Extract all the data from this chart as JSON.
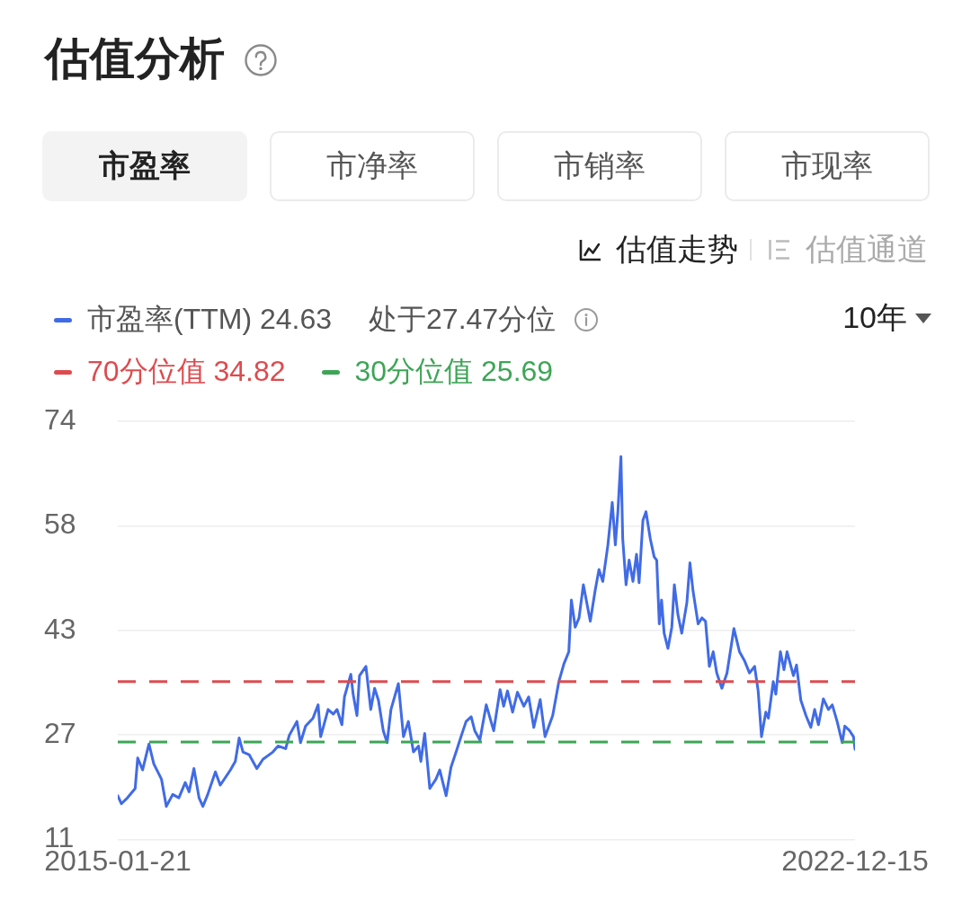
{
  "chart_data": {
    "type": "line",
    "title": "估值分析",
    "annotations": [
      "处于27.47分位",
      "10年",
      "市盈率",
      "市净率",
      "市销率",
      "市现率",
      "估值走势",
      "估值通道"
    ],
    "x": [
      "2015-01-21",
      "2015-02-04",
      "2015-02-28",
      "2015-03-30",
      "2015-04-09",
      "2015-04-28",
      "2015-05-23",
      "2015-06-11",
      "2015-07-11",
      "2015-07-30",
      "2015-08-24",
      "2015-09-17",
      "2015-10-12",
      "2015-10-27",
      "2015-11-15",
      "2015-12-05",
      "2015-12-20",
      "2016-01-08",
      "2016-02-07",
      "2016-02-26",
      "2016-04-06",
      "2016-04-25",
      "2016-05-10",
      "2016-05-25",
      "2016-06-18",
      "2016-07-18",
      "2016-08-11",
      "2016-09-19",
      "2016-10-09",
      "2016-11-08",
      "2016-11-22",
      "2016-12-22",
      "2017-01-05",
      "2017-01-25",
      "2017-02-23",
      "2017-03-15",
      "2017-03-25",
      "2017-04-23",
      "2017-05-13",
      "2017-05-28",
      "2017-06-16",
      "2017-06-26",
      "2017-07-21",
      "2017-07-30",
      "2017-08-14",
      "2017-08-24",
      "2017-09-18",
      "2017-10-07",
      "2017-10-22",
      "2017-11-06",
      "2017-11-25",
      "2017-12-10",
      "2017-12-25",
      "2018-01-23",
      "2018-02-12",
      "2018-03-03",
      "2018-03-23",
      "2018-04-12",
      "2018-04-21",
      "2018-05-06",
      "2018-05-26",
      "2018-06-19",
      "2018-07-04",
      "2018-07-29",
      "2018-08-17",
      "2018-09-06",
      "2018-09-25",
      "2018-10-15",
      "2018-11-04",
      "2018-11-18",
      "2018-12-08",
      "2019-01-02",
      "2019-01-31",
      "2019-02-25",
      "2019-03-11",
      "2019-03-26",
      "2019-04-15",
      "2019-05-04",
      "2019-05-29",
      "2019-06-17",
      "2019-07-07",
      "2019-08-01",
      "2019-08-20",
      "2019-09-19",
      "2019-10-13",
      "2019-11-02",
      "2019-11-21",
      "2019-12-01",
      "2019-12-16",
      "2019-12-31",
      "2020-01-17",
      "2020-02-13",
      "2020-03-03",
      "2020-03-18",
      "2020-04-02",
      "2020-04-22",
      "2020-05-09",
      "2020-05-21",
      "2020-05-31",
      "2020-06-12",
      "2020-06-19",
      "2020-07-02",
      "2020-07-14",
      "2020-07-29",
      "2020-08-12",
      "2020-08-22",
      "2020-09-06",
      "2020-09-18",
      "2020-10-05",
      "2020-10-20",
      "2020-10-30",
      "2020-11-09",
      "2020-11-18",
      "2020-11-28",
      "2020-12-13",
      "2020-12-28",
      "2021-01-07",
      "2021-01-21",
      "2021-02-05",
      "2021-02-25",
      "2021-03-09",
      "2021-03-21",
      "2021-04-10",
      "2021-04-25",
      "2021-05-09",
      "2021-05-24",
      "2021-06-08",
      "2021-06-22",
      "2021-07-12",
      "2021-08-01",
      "2021-08-28",
      "2021-09-19",
      "2021-10-08",
      "2021-10-28",
      "2021-11-17",
      "2021-12-01",
      "2021-12-14",
      "2021-12-31",
      "2022-01-10",
      "2022-01-29",
      "2022-02-08",
      "2022-02-26",
      "2022-03-12",
      "2022-03-24",
      "2022-04-18",
      "2022-04-30",
      "2022-05-17",
      "2022-06-06",
      "2022-06-25",
      "2022-07-10",
      "2022-07-25",
      "2022-08-13",
      "2022-09-02",
      "2022-09-17",
      "2022-10-06",
      "2022-10-26",
      "2022-11-05",
      "2022-11-24",
      "2022-12-09",
      "2022-12-15"
    ],
    "series": [
      {
        "name": "市盈率(TTM) 24.63",
        "color": "#416be6",
        "values": [
          17.6,
          16.4,
          17.3,
          18.7,
          23.3,
          21.5,
          25.4,
          22.4,
          20.1,
          16.0,
          17.8,
          17.3,
          19.6,
          18.2,
          21.7,
          17.3,
          16.0,
          17.8,
          21.2,
          19.2,
          21.5,
          22.8,
          26.3,
          24.2,
          23.8,
          21.7,
          23.1,
          24.2,
          25.1,
          24.7,
          26.7,
          28.8,
          25.6,
          28.1,
          29.3,
          31.3,
          26.5,
          30.6,
          29.9,
          30.6,
          28.3,
          32.5,
          35.9,
          32.9,
          29.7,
          35.7,
          37.1,
          30.6,
          33.8,
          32.0,
          27.4,
          25.6,
          30.6,
          34.5,
          26.5,
          28.8,
          24.2,
          25.1,
          22.8,
          27.0,
          18.7,
          20.1,
          21.5,
          17.6,
          21.9,
          24.2,
          26.5,
          28.8,
          29.5,
          27.4,
          26.0,
          31.3,
          27.4,
          33.6,
          31.1,
          33.4,
          30.2,
          33.2,
          31.1,
          32.5,
          27.9,
          32.1,
          26.5,
          29.7,
          34.8,
          37.5,
          39.3,
          47.1,
          43.0,
          44.4,
          49.4,
          43.9,
          48.5,
          51.7,
          49.9,
          55.4,
          61.8,
          55.4,
          60.4,
          68.7,
          56.3,
          49.4,
          53.1,
          49.9,
          54.0,
          49.7,
          59.1,
          60.4,
          56.3,
          53.6,
          53.1,
          43.5,
          47.1,
          42.1,
          39.8,
          43.0,
          49.4,
          44.9,
          42.1,
          46.7,
          52.7,
          48.5,
          43.5,
          44.4,
          43.9,
          37.1,
          39.3,
          36.1,
          33.8,
          36.1,
          42.8,
          39.3,
          38.0,
          36.1,
          37.1,
          33.4,
          26.5,
          30.2,
          29.3,
          34.8,
          32.9,
          39.3,
          36.6,
          39.3,
          35.7,
          37.3,
          32.0,
          29.7,
          27.9,
          30.6,
          28.3,
          32.2,
          30.6,
          31.3,
          28.8,
          25.6,
          28.1,
          27.4,
          26.5,
          24.6
        ]
      }
    ],
    "xlim": [
      "2015-01-21",
      "2022-12-15"
    ],
    "xticks": [
      "2015-01-21",
      "2022-12-15"
    ],
    "ylim": [
      11,
      74
    ],
    "yticks": [
      11,
      {
        "value": 26.75,
        "label": "27"
      },
      {
        "value": 42.5,
        "label": "43"
      },
      {
        "value": 58.25,
        "label": "58"
      },
      74
    ],
    "ref_lines": [
      {
        "axis": "y",
        "value": 34.82,
        "label": "70分位值 34.82",
        "color": "#dd4b4f",
        "line_style": "dashed"
      },
      {
        "axis": "y",
        "value": 25.69,
        "label": "30分位值 25.69",
        "color": "#3da556",
        "line_style": "dashed"
      }
    ],
    "grid": "y",
    "legend": "top left",
    "marker": "none"
  }
}
